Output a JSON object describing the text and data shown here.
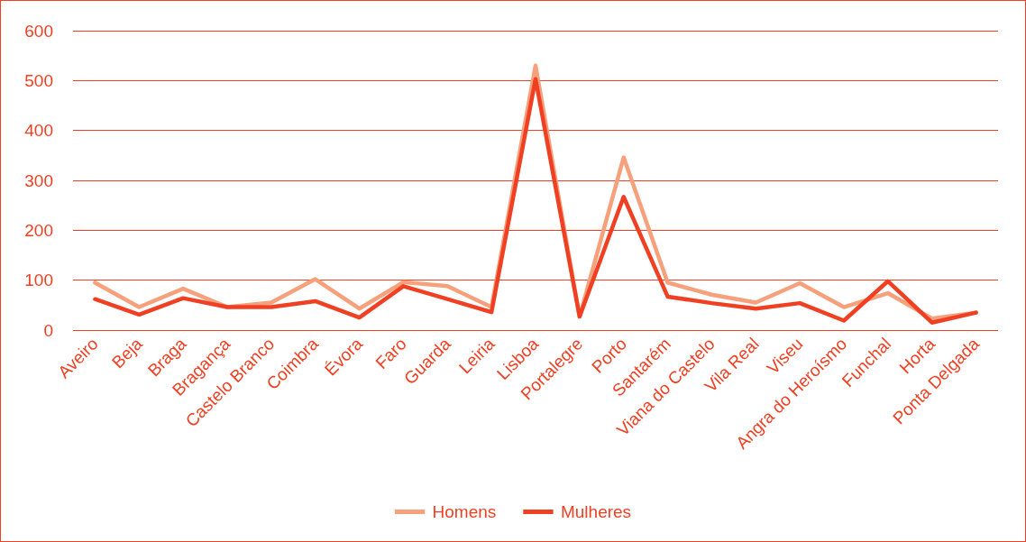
{
  "chart_data": {
    "type": "line",
    "categories": [
      "Aveiro",
      "Beja",
      "Braga",
      "Bragança",
      "Castelo Branco",
      "Coimbra",
      "Évora",
      "Faro",
      "Guarda",
      "Leiria",
      "Lisboa",
      "Portalegre",
      "Porto",
      "Santarém",
      "Viana do Castelo",
      "Vila Real",
      "Viseu",
      "Angra do Heroísmo",
      "Funchal",
      "Horta",
      "Ponta Delgada"
    ],
    "series": [
      {
        "name": "Homens",
        "color": "#f7a07c",
        "values": [
          95,
          46,
          83,
          46,
          55,
          102,
          43,
          96,
          88,
          46,
          530,
          27,
          346,
          95,
          71,
          55,
          94,
          46,
          74,
          23,
          35
        ]
      },
      {
        "name": "Mulheres",
        "color": "#f04023",
        "values": [
          62,
          31,
          64,
          46,
          46,
          58,
          25,
          88,
          62,
          36,
          503,
          27,
          267,
          67,
          54,
          43,
          54,
          19,
          98,
          15,
          35
        ]
      }
    ],
    "ylim": [
      0,
      600
    ],
    "yticks": [
      0,
      100,
      200,
      300,
      400,
      500,
      600
    ],
    "grid": "y",
    "legend": "bottom",
    "marker": "none",
    "line_style": "solid"
  }
}
